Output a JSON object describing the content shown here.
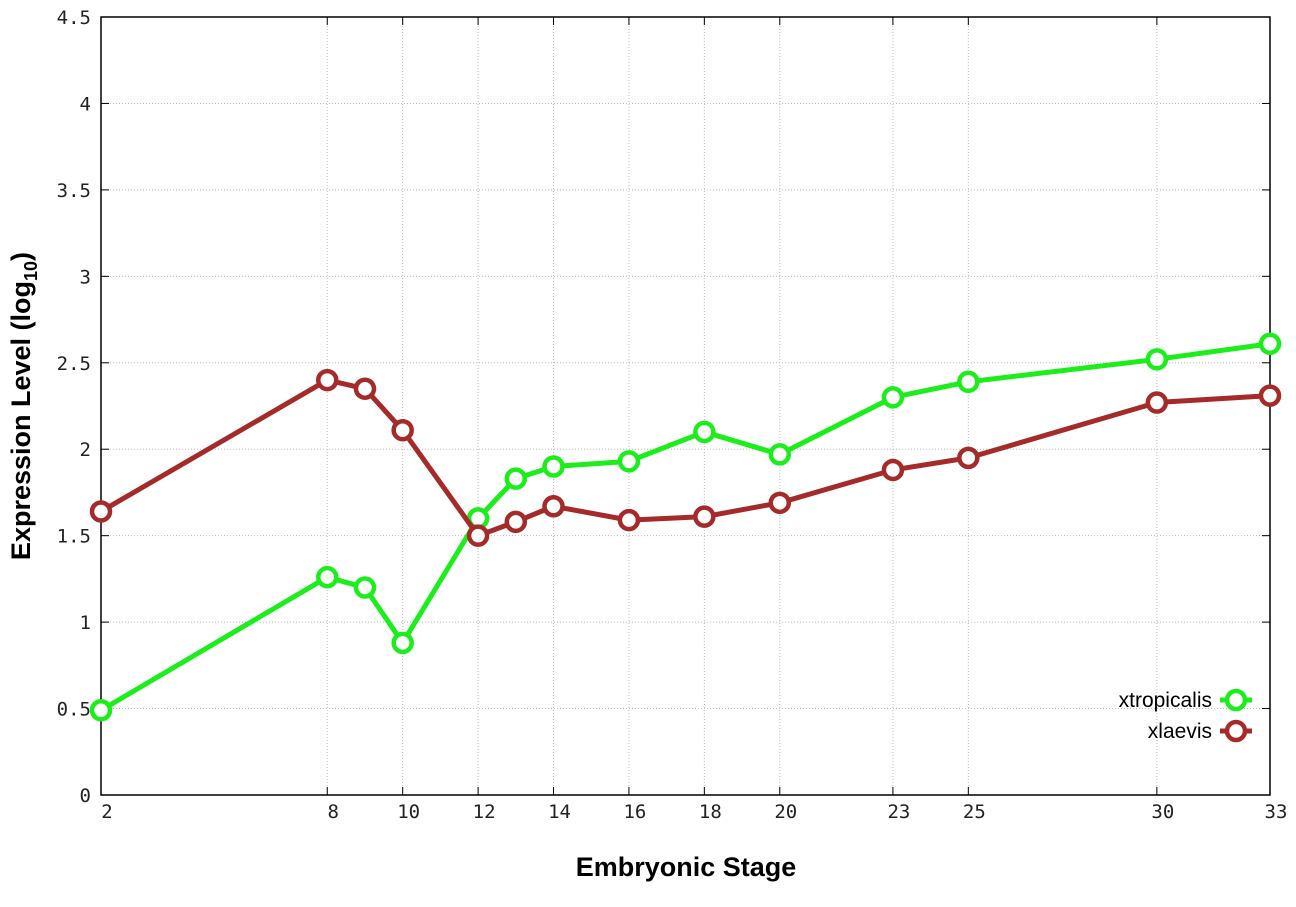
{
  "chart_data": {
    "type": "line",
    "title": "",
    "xlabel": "Embryonic Stage",
    "ylabel": "Expression Level (log",
    "ylabel_subscript": "10",
    "ylabel_suffix": ")",
    "xlim": [
      2,
      33
    ],
    "ylim": [
      0,
      4.5
    ],
    "x_ticks": [
      2,
      8,
      10,
      12,
      14,
      16,
      18,
      20,
      23,
      25,
      30,
      33
    ],
    "y_ticks": [
      0,
      0.5,
      1,
      1.5,
      2,
      2.5,
      3,
      3.5,
      4,
      4.5
    ],
    "y_tick_labels": [
      "0",
      "0.5",
      "1",
      "1.5",
      "2",
      "2.5",
      "3",
      "3.5",
      "4",
      "4.5"
    ],
    "grid": true,
    "legend_position": "bottom-right",
    "x": [
      2,
      8,
      9,
      10,
      12,
      13,
      14,
      16,
      18,
      20,
      23,
      25,
      30,
      33
    ],
    "series": [
      {
        "name": "xtropicalis",
        "color": "#1cee1c",
        "values": [
          0.49,
          1.26,
          1.2,
          0.88,
          1.6,
          1.83,
          1.9,
          1.93,
          2.1,
          1.97,
          2.3,
          2.39,
          2.52,
          2.61
        ]
      },
      {
        "name": "xlaevis",
        "color": "#a52a2a",
        "values": [
          1.64,
          2.4,
          2.35,
          2.11,
          1.5,
          1.58,
          1.67,
          1.59,
          1.61,
          1.69,
          1.88,
          1.95,
          2.27,
          2.31
        ]
      }
    ]
  }
}
